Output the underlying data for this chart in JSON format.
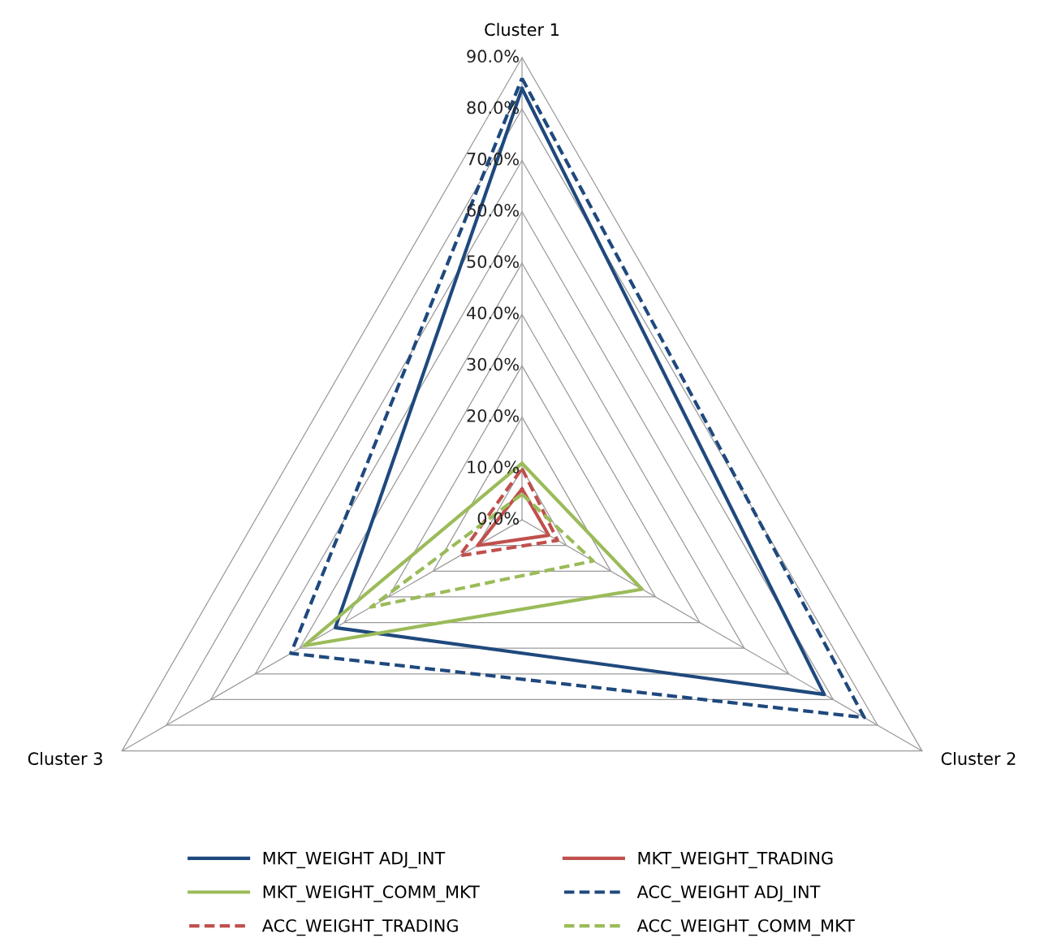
{
  "chart_data": {
    "type": "radar",
    "categories": [
      "Cluster 1",
      "Cluster 2",
      "Cluster 3"
    ],
    "ylim": [
      0,
      90
    ],
    "yticks": [
      {
        "value": 0,
        "label": "0.0%"
      },
      {
        "value": 10,
        "label": "10.0%"
      },
      {
        "value": 20,
        "label": "20.0%"
      },
      {
        "value": 30,
        "label": "30.0%"
      },
      {
        "value": 40,
        "label": "40.0%"
      },
      {
        "value": 50,
        "label": "50.0%"
      },
      {
        "value": 60,
        "label": "60.0%"
      },
      {
        "value": 70,
        "label": "70.0%"
      },
      {
        "value": 80,
        "label": "80.0%"
      },
      {
        "value": 90,
        "label": "90.0%"
      }
    ],
    "grid": true,
    "legend": "bottom",
    "marker": "none",
    "series": [
      {
        "name": "MKT_WEIGHT ADJ_INT",
        "color": "#1f497d",
        "line_style": "solid",
        "values": [
          84,
          68,
          42
        ]
      },
      {
        "name": "MKT_WEIGHT_TRADING",
        "color": "#c0504d",
        "line_style": "solid",
        "values": [
          6,
          6,
          10
        ]
      },
      {
        "name": "MKT_WEIGHT_COMM_MKT",
        "color": "#9bbb59",
        "line_style": "solid",
        "values": [
          11,
          27,
          49
        ]
      },
      {
        "name": "ACC_WEIGHT ADJ_INT",
        "color": "#1f497d",
        "line_style": "dashed",
        "values": [
          86,
          77,
          52
        ]
      },
      {
        "name": "ACC_WEIGHT_TRADING",
        "color": "#c0504d",
        "line_style": "dashed",
        "values": [
          10,
          8,
          14
        ]
      },
      {
        "name": "ACC_WEIGHT_COMM_MKT",
        "color": "#9bbb59",
        "line_style": "dashed",
        "values": [
          5,
          16,
          34
        ]
      }
    ]
  }
}
